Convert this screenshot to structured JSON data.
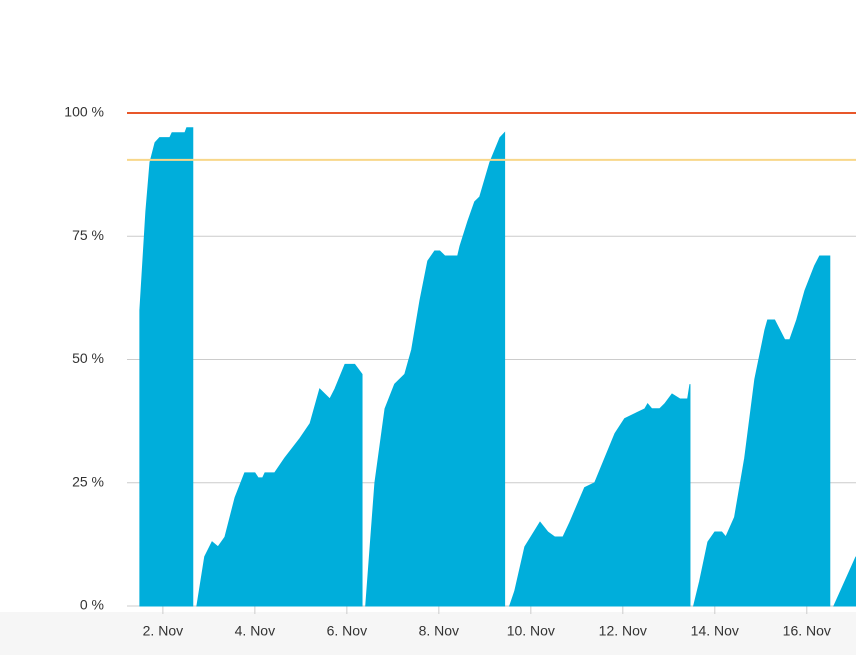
{
  "chart_data": {
    "type": "area",
    "color": "#00aedb",
    "x": [
      1.5,
      1.63,
      1.72,
      1.83,
      1.93,
      2.15,
      2.2,
      2.48,
      2.52,
      2.65,
      null,
      2.74,
      2.91,
      3.07,
      3.2,
      3.35,
      3.57,
      3.78,
      4.0,
      4.07,
      4.17,
      4.22,
      4.43,
      4.65,
      4.98,
      5.2,
      5.41,
      5.63,
      5.74,
      5.96,
      6.17,
      6.33,
      null,
      6.41,
      6.61,
      6.83,
      7.04,
      7.26,
      7.41,
      7.59,
      7.76,
      7.91,
      8.02,
      8.13,
      8.41,
      8.46,
      8.63,
      8.78,
      8.89,
      9.11,
      9.33,
      9.43,
      null,
      9.54,
      9.65,
      9.87,
      10.2,
      10.37,
      10.52,
      10.7,
      10.85,
      11.17,
      11.39,
      11.61,
      11.83,
      12.04,
      12.26,
      12.48,
      12.54,
      12.63,
      12.8,
      12.91,
      13.07,
      13.24,
      13.41,
      13.46,
      null,
      13.54,
      13.67,
      13.85,
      14.0,
      14.15,
      14.24,
      14.43,
      14.65,
      14.87,
      15.09,
      15.15,
      15.3,
      15.52,
      15.63,
      15.78,
      15.96,
      16.17,
      16.28,
      16.5,
      null,
      16.59,
      16.83,
      17.07
    ],
    "values": [
      60,
      80,
      90,
      94,
      95,
      95,
      96,
      96,
      97,
      97,
      null,
      0,
      10,
      13,
      12,
      14,
      22,
      27,
      27,
      26,
      26,
      27,
      27,
      30,
      34,
      37,
      44,
      42,
      44,
      49,
      49,
      47,
      null,
      0,
      25,
      40,
      45,
      47,
      52,
      62,
      70,
      72,
      72,
      71,
      71,
      73,
      78,
      82,
      83,
      90,
      95,
      96,
      null,
      0,
      3,
      12,
      17,
      15,
      14,
      14,
      17,
      24,
      25,
      30,
      35,
      38,
      39,
      40,
      41,
      40,
      40,
      41,
      43,
      42,
      42,
      45,
      null,
      0,
      5,
      13,
      15,
      15,
      14,
      18,
      30,
      46,
      56,
      58,
      58,
      54,
      54,
      58,
      64,
      69,
      71,
      71,
      null,
      0,
      5,
      10
    ],
    "xlim": [
      1.22,
      17.07
    ],
    "xticks": [
      {
        "value": 2,
        "label": "2. Nov"
      },
      {
        "value": 4,
        "label": "4. Nov"
      },
      {
        "value": 6,
        "label": "6. Nov"
      },
      {
        "value": 8,
        "label": "8. Nov"
      },
      {
        "value": 10,
        "label": "10. Nov"
      },
      {
        "value": 12,
        "label": "12. Nov"
      },
      {
        "value": 14,
        "label": "14. Nov"
      },
      {
        "value": 16,
        "label": "16. Nov"
      }
    ],
    "ylim": [
      0,
      100
    ],
    "yticks": [
      {
        "value": 0,
        "label": "0 %"
      },
      {
        "value": 25,
        "label": "25 %"
      },
      {
        "value": 50,
        "label": "50 %"
      },
      {
        "value": 75,
        "label": "75 %"
      },
      {
        "value": 100,
        "label": "100 %"
      }
    ],
    "grid": true,
    "thresholds": [
      {
        "value": 100,
        "color": "#e8572a"
      },
      {
        "value": 90.5,
        "color": "#f8d78a"
      }
    ]
  }
}
